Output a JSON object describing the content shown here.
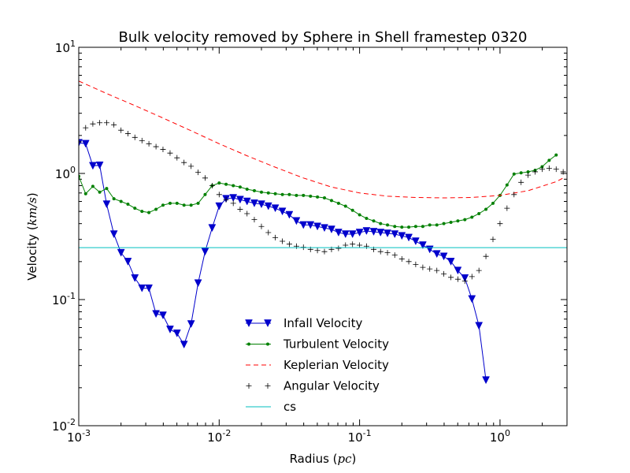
{
  "chart_data": {
    "type": "line",
    "title": "Bulk velocity removed by Sphere in Shell framestep 0320",
    "xlabel": {
      "text": "Radius (",
      "var": "pc",
      "close": ")"
    },
    "ylabel": {
      "text": "Velocity (",
      "var": "km/s",
      "close": ")"
    },
    "xscale": "log",
    "yscale": "log",
    "xlim": [
      0.001,
      3.0
    ],
    "ylim": [
      0.01,
      10
    ],
    "x_ticks": [
      {
        "value": 0.001,
        "base": "10",
        "exp": "-3"
      },
      {
        "value": 0.01,
        "base": "10",
        "exp": "-2"
      },
      {
        "value": 0.1,
        "base": "10",
        "exp": "-1"
      },
      {
        "value": 1,
        "base": "10",
        "exp": "0"
      }
    ],
    "y_ticks": [
      {
        "value": 0.01,
        "base": "10",
        "exp": "-2"
      },
      {
        "value": 0.1,
        "base": "10",
        "exp": "-1"
      },
      {
        "value": 1,
        "base": "10",
        "exp": "0"
      },
      {
        "value": 10,
        "base": "10",
        "exp": "1"
      }
    ],
    "grid": false,
    "legend_position": "lower-center",
    "series": [
      {
        "name": "Infall Velocity",
        "color": "#0000cc",
        "marker": "triangle-down",
        "line": "solid",
        "points": [
          [
            0.001,
            1.75
          ],
          [
            0.00112,
            1.72
          ],
          [
            0.00126,
            1.15
          ],
          [
            0.00141,
            1.16
          ],
          [
            0.00158,
            0.57
          ],
          [
            0.00178,
            0.33
          ],
          [
            0.002,
            0.235
          ],
          [
            0.00224,
            0.2
          ],
          [
            0.00251,
            0.148
          ],
          [
            0.00282,
            0.123
          ],
          [
            0.00316,
            0.123
          ],
          [
            0.00355,
            0.077
          ],
          [
            0.00398,
            0.075
          ],
          [
            0.00447,
            0.058
          ],
          [
            0.00501,
            0.054
          ],
          [
            0.00562,
            0.044
          ],
          [
            0.00631,
            0.064
          ],
          [
            0.00708,
            0.135
          ],
          [
            0.00794,
            0.24
          ],
          [
            0.00891,
            0.37
          ],
          [
            0.01,
            0.55
          ],
          [
            0.0112,
            0.63
          ],
          [
            0.0126,
            0.64
          ],
          [
            0.0141,
            0.62
          ],
          [
            0.0158,
            0.6
          ],
          [
            0.0178,
            0.58
          ],
          [
            0.02,
            0.57
          ],
          [
            0.0224,
            0.55
          ],
          [
            0.0251,
            0.53
          ],
          [
            0.0282,
            0.5
          ],
          [
            0.0316,
            0.47
          ],
          [
            0.0355,
            0.42
          ],
          [
            0.0398,
            0.39
          ],
          [
            0.0447,
            0.39
          ],
          [
            0.0501,
            0.38
          ],
          [
            0.0562,
            0.37
          ],
          [
            0.0631,
            0.36
          ],
          [
            0.0708,
            0.34
          ],
          [
            0.0794,
            0.33
          ],
          [
            0.0891,
            0.33
          ],
          [
            0.1,
            0.34
          ],
          [
            0.112,
            0.35
          ],
          [
            0.126,
            0.345
          ],
          [
            0.141,
            0.34
          ],
          [
            0.158,
            0.335
          ],
          [
            0.178,
            0.33
          ],
          [
            0.2,
            0.32
          ],
          [
            0.224,
            0.31
          ],
          [
            0.251,
            0.29
          ],
          [
            0.282,
            0.27
          ],
          [
            0.316,
            0.25
          ],
          [
            0.355,
            0.23
          ],
          [
            0.398,
            0.22
          ],
          [
            0.447,
            0.2
          ],
          [
            0.501,
            0.17
          ],
          [
            0.562,
            0.148
          ],
          [
            0.631,
            0.101
          ],
          [
            0.708,
            0.062
          ],
          [
            0.794,
            0.023
          ]
        ]
      },
      {
        "name": "Turbulent Velocity",
        "color": "#008000",
        "marker": "dot",
        "line": "solid",
        "points": [
          [
            0.001,
            0.95
          ],
          [
            0.00112,
            0.69
          ],
          [
            0.00126,
            0.79
          ],
          [
            0.00141,
            0.71
          ],
          [
            0.00158,
            0.76
          ],
          [
            0.00178,
            0.63
          ],
          [
            0.002,
            0.6
          ],
          [
            0.00224,
            0.57
          ],
          [
            0.00251,
            0.53
          ],
          [
            0.00282,
            0.5
          ],
          [
            0.00316,
            0.49
          ],
          [
            0.00355,
            0.52
          ],
          [
            0.00398,
            0.56
          ],
          [
            0.00447,
            0.58
          ],
          [
            0.00501,
            0.58
          ],
          [
            0.00562,
            0.56
          ],
          [
            0.00631,
            0.56
          ],
          [
            0.00708,
            0.58
          ],
          [
            0.00794,
            0.68
          ],
          [
            0.00891,
            0.8
          ],
          [
            0.01,
            0.84
          ],
          [
            0.0112,
            0.82
          ],
          [
            0.0126,
            0.8
          ],
          [
            0.0141,
            0.78
          ],
          [
            0.0158,
            0.75
          ],
          [
            0.0178,
            0.73
          ],
          [
            0.02,
            0.71
          ],
          [
            0.0224,
            0.7
          ],
          [
            0.0251,
            0.69
          ],
          [
            0.0282,
            0.68
          ],
          [
            0.0316,
            0.68
          ],
          [
            0.0355,
            0.67
          ],
          [
            0.0398,
            0.67
          ],
          [
            0.0447,
            0.66
          ],
          [
            0.0501,
            0.65
          ],
          [
            0.0562,
            0.64
          ],
          [
            0.0631,
            0.61
          ],
          [
            0.0708,
            0.58
          ],
          [
            0.0794,
            0.55
          ],
          [
            0.0891,
            0.51
          ],
          [
            0.1,
            0.47
          ],
          [
            0.112,
            0.44
          ],
          [
            0.126,
            0.42
          ],
          [
            0.141,
            0.4
          ],
          [
            0.158,
            0.39
          ],
          [
            0.178,
            0.38
          ],
          [
            0.2,
            0.375
          ],
          [
            0.224,
            0.375
          ],
          [
            0.251,
            0.38
          ],
          [
            0.282,
            0.38
          ],
          [
            0.316,
            0.39
          ],
          [
            0.355,
            0.39
          ],
          [
            0.398,
            0.4
          ],
          [
            0.447,
            0.41
          ],
          [
            0.501,
            0.42
          ],
          [
            0.562,
            0.43
          ],
          [
            0.631,
            0.45
          ],
          [
            0.708,
            0.48
          ],
          [
            0.794,
            0.52
          ],
          [
            0.891,
            0.58
          ],
          [
            1.0,
            0.67
          ],
          [
            1.122,
            0.81
          ],
          [
            1.259,
            0.99
          ],
          [
            1.413,
            1.01
          ],
          [
            1.585,
            1.03
          ],
          [
            1.778,
            1.06
          ],
          [
            1.995,
            1.13
          ],
          [
            2.239,
            1.27
          ],
          [
            2.512,
            1.4
          ]
        ]
      },
      {
        "name": "Keplerian Velocity",
        "color": "#ff0000",
        "marker": "none",
        "line": "dashed",
        "points": [
          [
            0.001,
            5.4
          ],
          [
            0.00158,
            4.3
          ],
          [
            0.00251,
            3.45
          ],
          [
            0.00398,
            2.75
          ],
          [
            0.00631,
            2.18
          ],
          [
            0.01,
            1.72
          ],
          [
            0.0158,
            1.38
          ],
          [
            0.0251,
            1.12
          ],
          [
            0.0398,
            0.92
          ],
          [
            0.0631,
            0.78
          ],
          [
            0.1,
            0.7
          ],
          [
            0.158,
            0.66
          ],
          [
            0.251,
            0.645
          ],
          [
            0.398,
            0.64
          ],
          [
            0.631,
            0.645
          ],
          [
            1.0,
            0.67
          ],
          [
            1.585,
            0.73
          ],
          [
            2.512,
            0.86
          ],
          [
            2.818,
            0.92
          ]
        ]
      },
      {
        "name": "Angular Velocity",
        "color": "#000000",
        "marker": "plus",
        "line": "none",
        "points": [
          [
            0.001,
            1.78
          ],
          [
            0.00112,
            2.3
          ],
          [
            0.00126,
            2.47
          ],
          [
            0.00141,
            2.52
          ],
          [
            0.00158,
            2.52
          ],
          [
            0.00178,
            2.43
          ],
          [
            0.002,
            2.2
          ],
          [
            0.00224,
            2.07
          ],
          [
            0.00251,
            1.93
          ],
          [
            0.00282,
            1.82
          ],
          [
            0.00316,
            1.72
          ],
          [
            0.00355,
            1.63
          ],
          [
            0.00398,
            1.55
          ],
          [
            0.00447,
            1.45
          ],
          [
            0.00501,
            1.33
          ],
          [
            0.00562,
            1.22
          ],
          [
            0.00631,
            1.14
          ],
          [
            0.00708,
            1.02
          ],
          [
            0.00794,
            0.92
          ],
          [
            0.00891,
            0.8
          ],
          [
            0.01,
            0.68
          ],
          [
            0.0112,
            0.62
          ],
          [
            0.0126,
            0.58
          ],
          [
            0.0141,
            0.52
          ],
          [
            0.0158,
            0.48
          ],
          [
            0.0178,
            0.43
          ],
          [
            0.02,
            0.38
          ],
          [
            0.0224,
            0.34
          ],
          [
            0.0251,
            0.31
          ],
          [
            0.0282,
            0.29
          ],
          [
            0.0316,
            0.275
          ],
          [
            0.0355,
            0.265
          ],
          [
            0.0398,
            0.26
          ],
          [
            0.0447,
            0.25
          ],
          [
            0.0501,
            0.245
          ],
          [
            0.0562,
            0.24
          ],
          [
            0.0631,
            0.25
          ],
          [
            0.0708,
            0.255
          ],
          [
            0.0794,
            0.27
          ],
          [
            0.0891,
            0.275
          ],
          [
            0.1,
            0.27
          ],
          [
            0.112,
            0.265
          ],
          [
            0.126,
            0.25
          ],
          [
            0.141,
            0.24
          ],
          [
            0.158,
            0.235
          ],
          [
            0.178,
            0.225
          ],
          [
            0.2,
            0.21
          ],
          [
            0.224,
            0.2
          ],
          [
            0.251,
            0.19
          ],
          [
            0.282,
            0.18
          ],
          [
            0.316,
            0.175
          ],
          [
            0.355,
            0.17
          ],
          [
            0.398,
            0.16
          ],
          [
            0.447,
            0.15
          ],
          [
            0.501,
            0.145
          ],
          [
            0.562,
            0.14
          ],
          [
            0.631,
            0.152
          ],
          [
            0.708,
            0.17
          ],
          [
            0.794,
            0.22
          ],
          [
            0.891,
            0.3
          ],
          [
            1.0,
            0.4
          ],
          [
            1.122,
            0.53
          ],
          [
            1.259,
            0.68
          ],
          [
            1.413,
            0.85
          ],
          [
            1.585,
            0.97
          ],
          [
            1.778,
            1.03
          ],
          [
            1.995,
            1.08
          ],
          [
            2.239,
            1.1
          ],
          [
            2.512,
            1.08
          ],
          [
            2.818,
            1.03
          ]
        ]
      },
      {
        "name": "cs",
        "color": "#00bfbf",
        "marker": "none",
        "line": "solid",
        "points": [
          [
            0.001,
            0.258
          ],
          [
            3.0,
            0.258
          ]
        ]
      }
    ]
  }
}
